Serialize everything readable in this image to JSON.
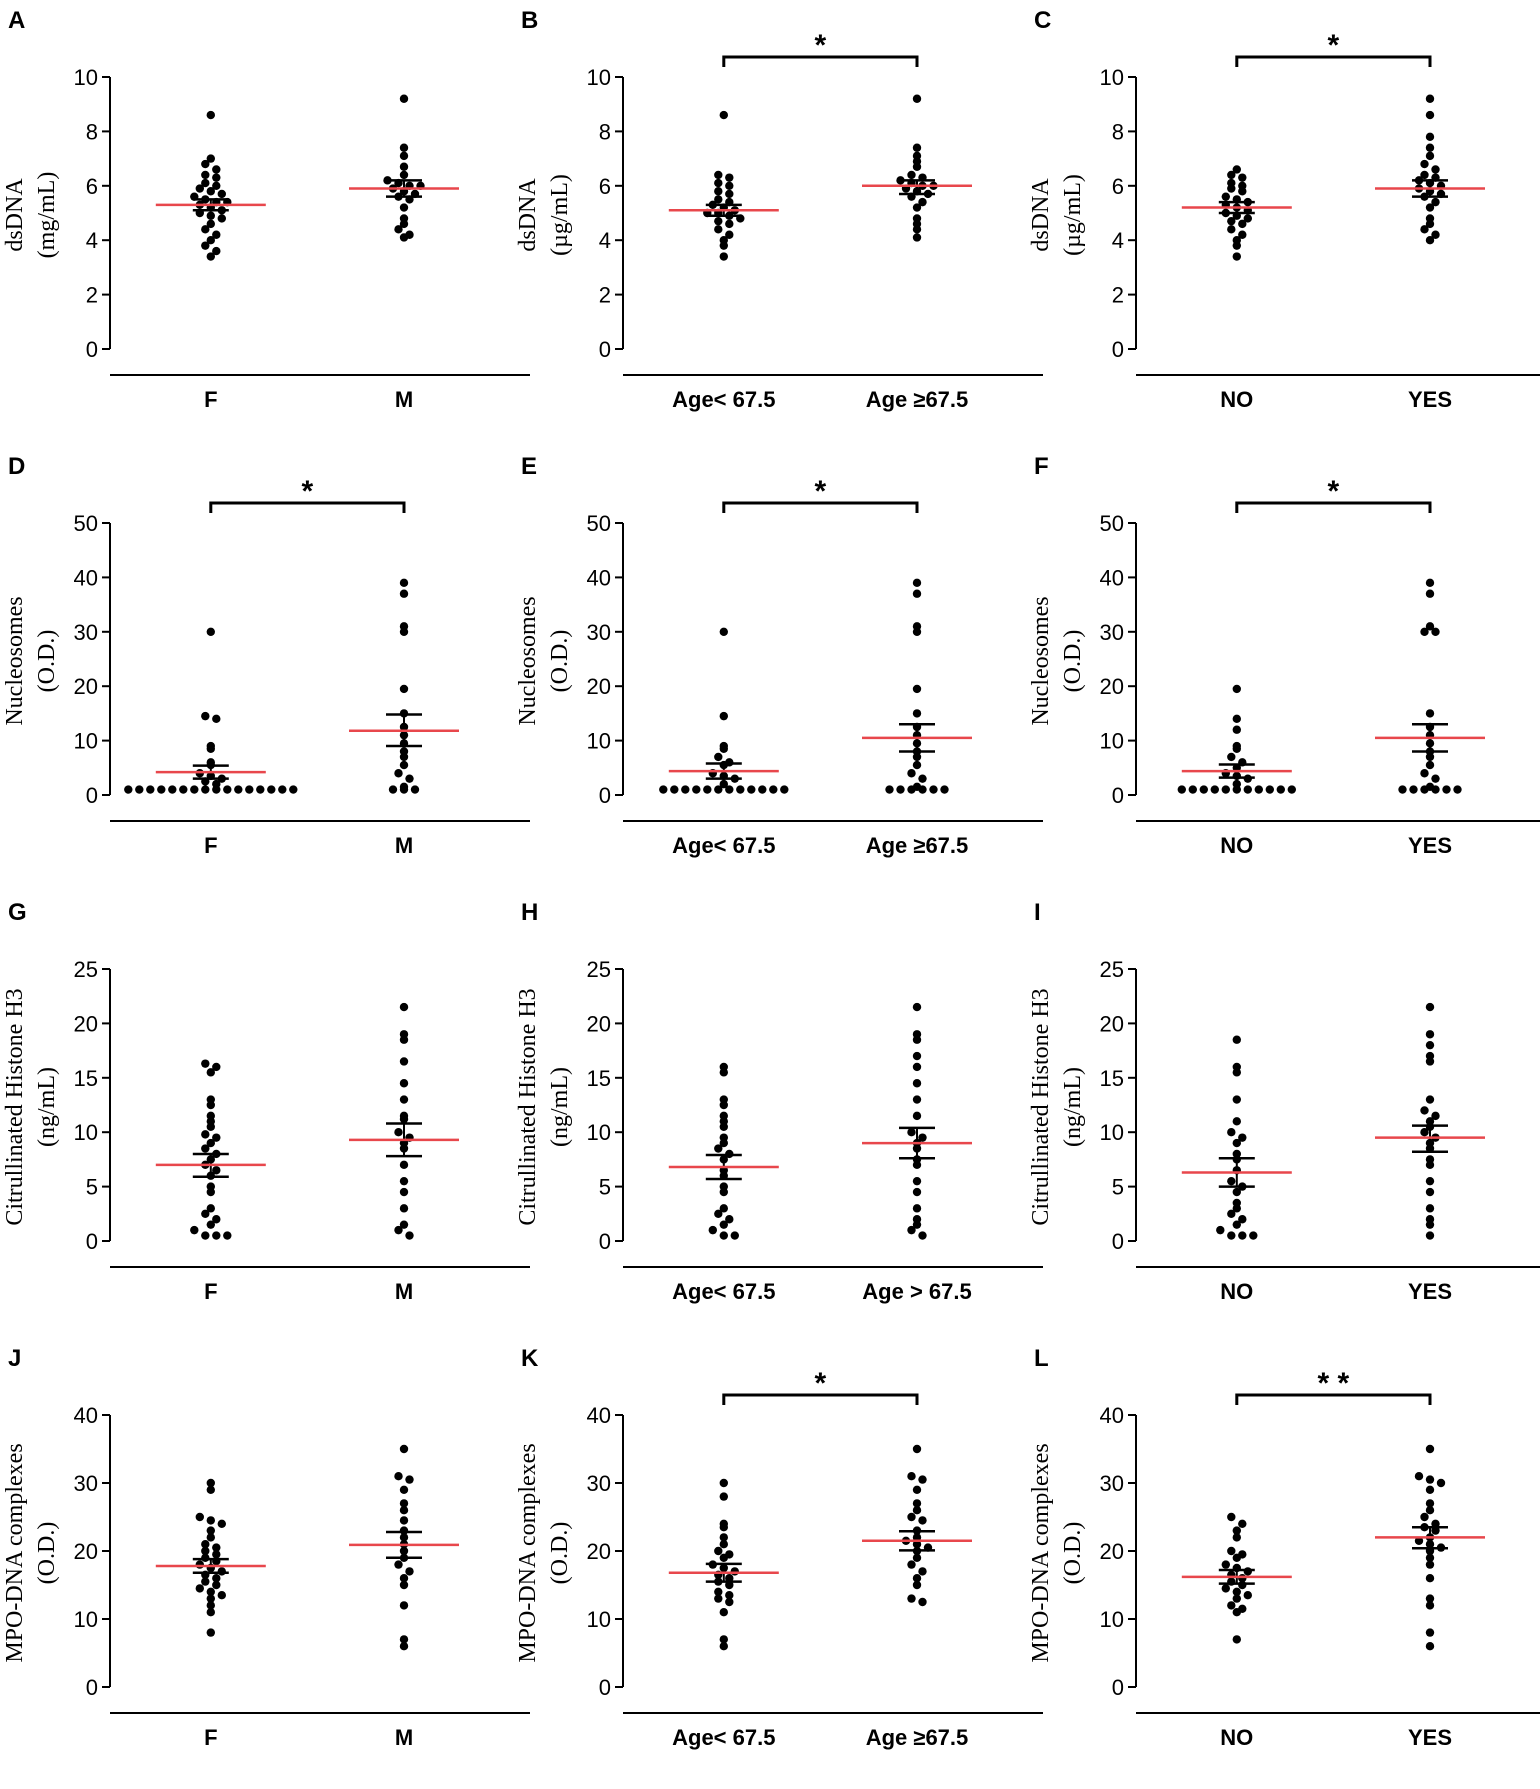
{
  "figure": {
    "panel_letters": [
      "A",
      "B",
      "C",
      "D",
      "E",
      "F",
      "G",
      "H",
      "I",
      "J",
      "K",
      "L"
    ],
    "colors": {
      "points": "#000000",
      "mean_line": "#e8474c",
      "axis": "#000000"
    }
  },
  "chart_data": [
    {
      "type": "scatter",
      "panel": "A",
      "ylabel": [
        "dsDNA",
        "(mg/mL)"
      ],
      "ylim": [
        0,
        10
      ],
      "yticks": [
        0,
        2,
        4,
        6,
        8,
        10
      ],
      "categories": [
        "F",
        "M"
      ],
      "groups": [
        {
          "name": "F",
          "mean": 5.3,
          "sem_low": 5.1,
          "sem_high": 5.5,
          "values": [
            8.6,
            7.0,
            6.8,
            6.6,
            6.4,
            6.3,
            6.1,
            6.0,
            5.9,
            5.8,
            5.7,
            5.6,
            5.5,
            5.4,
            5.4,
            5.3,
            5.2,
            5.1,
            5.0,
            4.9,
            4.8,
            4.6,
            4.4,
            4.2,
            4.0,
            3.8,
            3.6,
            3.4
          ]
        },
        {
          "name": "M",
          "mean": 5.9,
          "sem_low": 5.6,
          "sem_high": 6.2,
          "values": [
            9.2,
            7.4,
            7.1,
            6.7,
            6.4,
            6.2,
            6.1,
            6.0,
            6.0,
            5.9,
            5.8,
            5.7,
            5.6,
            5.5,
            5.2,
            4.8,
            4.6,
            4.4,
            4.2,
            4.1
          ]
        }
      ],
      "significance": null
    },
    {
      "type": "scatter",
      "panel": "B",
      "ylabel": [
        "dsDNA",
        "(µg/mL)"
      ],
      "ylim": [
        0,
        10
      ],
      "yticks": [
        0,
        2,
        4,
        6,
        8,
        10
      ],
      "categories": [
        "Age< 67.5",
        "Age ≥67.5"
      ],
      "groups": [
        {
          "name": "Age< 67.5",
          "mean": 5.1,
          "sem_low": 4.9,
          "sem_high": 5.3,
          "values": [
            8.6,
            6.4,
            6.3,
            6.1,
            6.0,
            5.8,
            5.7,
            5.5,
            5.4,
            5.3,
            5.2,
            5.1,
            5.0,
            5.0,
            4.9,
            4.8,
            4.7,
            4.6,
            4.4,
            4.2,
            4.0,
            3.8,
            3.4
          ]
        },
        {
          "name": "Age ≥67.5",
          "mean": 6.0,
          "sem_low": 5.7,
          "sem_high": 6.2,
          "values": [
            9.2,
            7.4,
            7.1,
            6.9,
            6.7,
            6.4,
            6.3,
            6.2,
            6.1,
            6.0,
            6.0,
            5.9,
            5.8,
            5.7,
            5.6,
            5.4,
            5.2,
            4.8,
            4.6,
            4.4,
            4.1
          ]
        }
      ],
      "significance": "*"
    },
    {
      "type": "scatter",
      "panel": "C",
      "ylabel": [
        "dsDNA",
        "(µg/mL)"
      ],
      "ylim": [
        0,
        10
      ],
      "yticks": [
        0,
        2,
        4,
        6,
        8,
        10
      ],
      "categories": [
        "NO",
        "YES"
      ],
      "groups": [
        {
          "name": "NO",
          "mean": 5.2,
          "sem_low": 5.0,
          "sem_high": 5.4,
          "values": [
            6.6,
            6.4,
            6.3,
            6.1,
            6.0,
            5.9,
            5.8,
            5.6,
            5.5,
            5.4,
            5.3,
            5.2,
            5.1,
            5.0,
            4.9,
            4.8,
            4.7,
            4.6,
            4.4,
            4.2,
            4.0,
            3.8,
            3.4
          ]
        },
        {
          "name": "YES",
          "mean": 5.9,
          "sem_low": 5.6,
          "sem_high": 6.2,
          "values": [
            9.2,
            8.6,
            7.8,
            7.4,
            7.1,
            6.8,
            6.6,
            6.4,
            6.3,
            6.2,
            6.1,
            6.0,
            5.9,
            5.8,
            5.7,
            5.6,
            5.4,
            5.2,
            4.8,
            4.6,
            4.4,
            4.2,
            4.0
          ]
        }
      ],
      "significance": "*"
    },
    {
      "type": "scatter",
      "panel": "D",
      "ylabel": [
        "Nucleosomes",
        "(O.D.)"
      ],
      "ylim": [
        0,
        50
      ],
      "yticks": [
        0,
        10,
        20,
        30,
        40,
        50
      ],
      "categories": [
        "F",
        "M"
      ],
      "groups": [
        {
          "name": "F",
          "mean": 4.2,
          "sem_low": 3.0,
          "sem_high": 5.4,
          "values": [
            30,
            14.5,
            14,
            9,
            8.5,
            6,
            5.5,
            4,
            3.5,
            3,
            2.5,
            2,
            1,
            1,
            1,
            1,
            1,
            1,
            1,
            1,
            1,
            1,
            1,
            1,
            1,
            1,
            1,
            1
          ]
        },
        {
          "name": "M",
          "mean": 11.8,
          "sem_low": 9.0,
          "sem_high": 14.8,
          "values": [
            39,
            37,
            31,
            30,
            19.5,
            15,
            12.5,
            11,
            9.5,
            8,
            7,
            5.5,
            4,
            3,
            1.5,
            1,
            1,
            1
          ]
        }
      ],
      "significance": "*"
    },
    {
      "type": "scatter",
      "panel": "E",
      "ylabel": [
        "Nucleosomes",
        "(O.D.)"
      ],
      "ylim": [
        0,
        50
      ],
      "yticks": [
        0,
        10,
        20,
        30,
        40,
        50
      ],
      "categories": [
        "Age< 67.5",
        "Age ≥67.5"
      ],
      "groups": [
        {
          "name": "Age< 67.5",
          "mean": 4.4,
          "sem_low": 3.0,
          "sem_high": 5.8,
          "values": [
            30,
            14.5,
            9,
            8.5,
            7,
            6,
            5.5,
            4,
            3.5,
            3,
            2,
            1,
            1,
            1,
            1,
            1,
            1,
            1,
            1,
            1,
            1,
            1,
            1
          ]
        },
        {
          "name": "Age ≥67.5",
          "mean": 10.5,
          "sem_low": 8.0,
          "sem_high": 13.0,
          "values": [
            39,
            37,
            31,
            30,
            19.5,
            15,
            12.5,
            11,
            9.5,
            8,
            7,
            5.5,
            4,
            3,
            1.5,
            1,
            1,
            1,
            1,
            1,
            1
          ]
        }
      ],
      "significance": "*"
    },
    {
      "type": "scatter",
      "panel": "F",
      "ylabel": [
        "Nucleosomes",
        "(O.D.)"
      ],
      "ylim": [
        0,
        50
      ],
      "yticks": [
        0,
        10,
        20,
        30,
        40,
        50
      ],
      "categories": [
        "NO",
        "YES"
      ],
      "groups": [
        {
          "name": "NO",
          "mean": 4.4,
          "sem_low": 3.2,
          "sem_high": 5.6,
          "values": [
            19.5,
            14,
            12,
            9,
            8.5,
            7,
            6,
            5,
            4,
            3.5,
            3,
            2,
            1,
            1,
            1,
            1,
            1,
            1,
            1,
            1,
            1,
            1,
            1
          ]
        },
        {
          "name": "YES",
          "mean": 10.5,
          "sem_low": 8.0,
          "sem_high": 13.0,
          "values": [
            39,
            37,
            31,
            30,
            30,
            15,
            12.5,
            11,
            9.5,
            8,
            7,
            5.5,
            4,
            3,
            1.5,
            1,
            1,
            1,
            1,
            1,
            1
          ]
        }
      ],
      "significance": "*"
    },
    {
      "type": "scatter",
      "panel": "G",
      "ylabel": [
        "Citrullinated Histone H3",
        "(ng/mL)"
      ],
      "ylim": [
        0,
        25
      ],
      "yticks": [
        0,
        5,
        10,
        15,
        20,
        25
      ],
      "categories": [
        "F",
        "M"
      ],
      "groups": [
        {
          "name": "F",
          "mean": 7.0,
          "sem_low": 5.9,
          "sem_high": 8.0,
          "values": [
            16.3,
            16.0,
            15.5,
            13.0,
            12.5,
            11.5,
            11.0,
            10.5,
            9.8,
            9.5,
            9.0,
            8.5,
            8.0,
            7.5,
            7.0,
            6.5,
            6.0,
            5.0,
            4.5,
            3.0,
            2.5,
            2.0,
            1.5,
            1.0,
            0.5,
            0.5,
            0.5
          ]
        },
        {
          "name": "M",
          "mean": 9.3,
          "sem_low": 7.8,
          "sem_high": 10.8,
          "values": [
            21.5,
            19.0,
            18.5,
            16.5,
            14.5,
            13.0,
            11.5,
            11.2,
            10.0,
            9.5,
            9.0,
            8.5,
            7.0,
            5.5,
            4.5,
            3.0,
            1.5,
            1.0,
            0.5
          ]
        }
      ],
      "significance": null
    },
    {
      "type": "scatter",
      "panel": "H",
      "ylabel": [
        "Citrullinated Histone H3",
        "(ng/mL)"
      ],
      "ylim": [
        0,
        25
      ],
      "yticks": [
        0,
        5,
        10,
        15,
        20,
        25
      ],
      "categories": [
        "Age< 67.5",
        "Age > 67.5"
      ],
      "groups": [
        {
          "name": "Age< 67.5",
          "mean": 6.8,
          "sem_low": 5.7,
          "sem_high": 7.9,
          "values": [
            16.0,
            15.5,
            13.0,
            12.5,
            11.5,
            11.0,
            10.5,
            9.5,
            9.0,
            8.5,
            8.0,
            7.5,
            6.5,
            6.0,
            5.0,
            4.5,
            3.0,
            2.5,
            2.0,
            1.5,
            1.0,
            0.5,
            0.5
          ]
        },
        {
          "name": "Age > 67.5",
          "mean": 9.0,
          "sem_low": 7.6,
          "sem_high": 10.4,
          "values": [
            21.5,
            19.0,
            18.5,
            17.0,
            16.0,
            14.5,
            13.0,
            11.5,
            10.0,
            9.5,
            9.0,
            8.5,
            7.5,
            7.0,
            5.5,
            4.5,
            3.0,
            2.0,
            1.5,
            1.0,
            0.5
          ]
        }
      ],
      "significance": null
    },
    {
      "type": "scatter",
      "panel": "I",
      "ylabel": [
        "Citrullinated Histone H3",
        "(ng/mL)"
      ],
      "ylim": [
        0,
        25
      ],
      "yticks": [
        0,
        5,
        10,
        15,
        20,
        25
      ],
      "categories": [
        "NO",
        "YES"
      ],
      "groups": [
        {
          "name": "NO",
          "mean": 6.3,
          "sem_low": 5.0,
          "sem_high": 7.6,
          "values": [
            18.5,
            16.0,
            15.5,
            13.0,
            11.0,
            10.0,
            9.5,
            9.0,
            8.0,
            7.5,
            6.5,
            5.5,
            5.0,
            4.5,
            3.5,
            3.0,
            2.5,
            2.0,
            1.5,
            1.0,
            0.5,
            0.5,
            0.5
          ]
        },
        {
          "name": "YES",
          "mean": 9.5,
          "sem_low": 8.2,
          "sem_high": 10.6,
          "values": [
            21.5,
            19.0,
            18.0,
            17.0,
            16.5,
            13.0,
            12.0,
            11.5,
            11.0,
            10.5,
            10.0,
            9.5,
            9.0,
            8.5,
            7.5,
            7.0,
            5.5,
            4.5,
            3.0,
            2.0,
            1.5,
            0.5
          ]
        }
      ],
      "significance": null
    },
    {
      "type": "scatter",
      "panel": "J",
      "ylabel": [
        "MPO-DNA complexes",
        "(O.D.)"
      ],
      "ylim": [
        0,
        40
      ],
      "yticks": [
        0,
        10,
        20,
        30,
        40
      ],
      "categories": [
        "F",
        "M"
      ],
      "groups": [
        {
          "name": "F",
          "mean": 17.8,
          "sem_low": 16.8,
          "sem_high": 18.8,
          "values": [
            30,
            29,
            25,
            24.5,
            24,
            23,
            22,
            21,
            20.5,
            20,
            19.5,
            19,
            18.5,
            18,
            17.5,
            17,
            16.5,
            16,
            15.5,
            15,
            14.5,
            14,
            13.5,
            13,
            12,
            11,
            8
          ]
        },
        {
          "name": "M",
          "mean": 20.9,
          "sem_low": 19.0,
          "sem_high": 22.8,
          "values": [
            35,
            31,
            30.5,
            29,
            27,
            26,
            24.5,
            23,
            22,
            21,
            20,
            19,
            18,
            17,
            16,
            15,
            12,
            7,
            6
          ]
        }
      ],
      "significance": null
    },
    {
      "type": "scatter",
      "panel": "K",
      "ylabel": [
        "MPO-DNA complexes",
        "(O.D.)"
      ],
      "ylim": [
        0,
        40
      ],
      "yticks": [
        0,
        10,
        20,
        30,
        40
      ],
      "categories": [
        "Age< 67.5",
        "Age ≥67.5"
      ],
      "groups": [
        {
          "name": "Age< 67.5",
          "mean": 16.8,
          "sem_low": 15.5,
          "sem_high": 18.1,
          "values": [
            30,
            28,
            24,
            23.5,
            22,
            21,
            20,
            19.5,
            19,
            18,
            17.5,
            17,
            16.5,
            16,
            15.5,
            15,
            14,
            13.5,
            13,
            12.5,
            11,
            7,
            6
          ]
        },
        {
          "name": "Age ≥67.5",
          "mean": 21.5,
          "sem_low": 20.1,
          "sem_high": 22.9,
          "values": [
            35,
            31,
            30.5,
            29,
            27,
            26,
            25,
            24.5,
            23,
            22,
            21.5,
            21,
            20.5,
            20,
            19,
            18,
            17,
            16,
            15,
            13,
            12.5
          ]
        }
      ],
      "significance": "*"
    },
    {
      "type": "scatter",
      "panel": "L",
      "ylabel": [
        "MPO-DNA complexes",
        "(O.D.)"
      ],
      "ylim": [
        0,
        40
      ],
      "yticks": [
        0,
        10,
        20,
        30,
        40
      ],
      "categories": [
        "NO",
        "YES"
      ],
      "groups": [
        {
          "name": "NO",
          "mean": 16.2,
          "sem_low": 15.2,
          "sem_high": 17.2,
          "values": [
            25,
            24,
            23,
            22,
            20,
            19.5,
            19,
            18,
            17.5,
            17,
            16.5,
            16,
            15.5,
            15,
            14.5,
            14,
            13.5,
            13,
            12,
            11.5,
            11,
            7
          ]
        },
        {
          "name": "YES",
          "mean": 22.0,
          "sem_low": 20.4,
          "sem_high": 23.5,
          "values": [
            35,
            31,
            30.5,
            30,
            29,
            27,
            26,
            25,
            24,
            23.5,
            23,
            22,
            21.5,
            21,
            20.5,
            20,
            19,
            18,
            16,
            13,
            12,
            8,
            6
          ]
        }
      ],
      "significance": "* *"
    }
  ]
}
